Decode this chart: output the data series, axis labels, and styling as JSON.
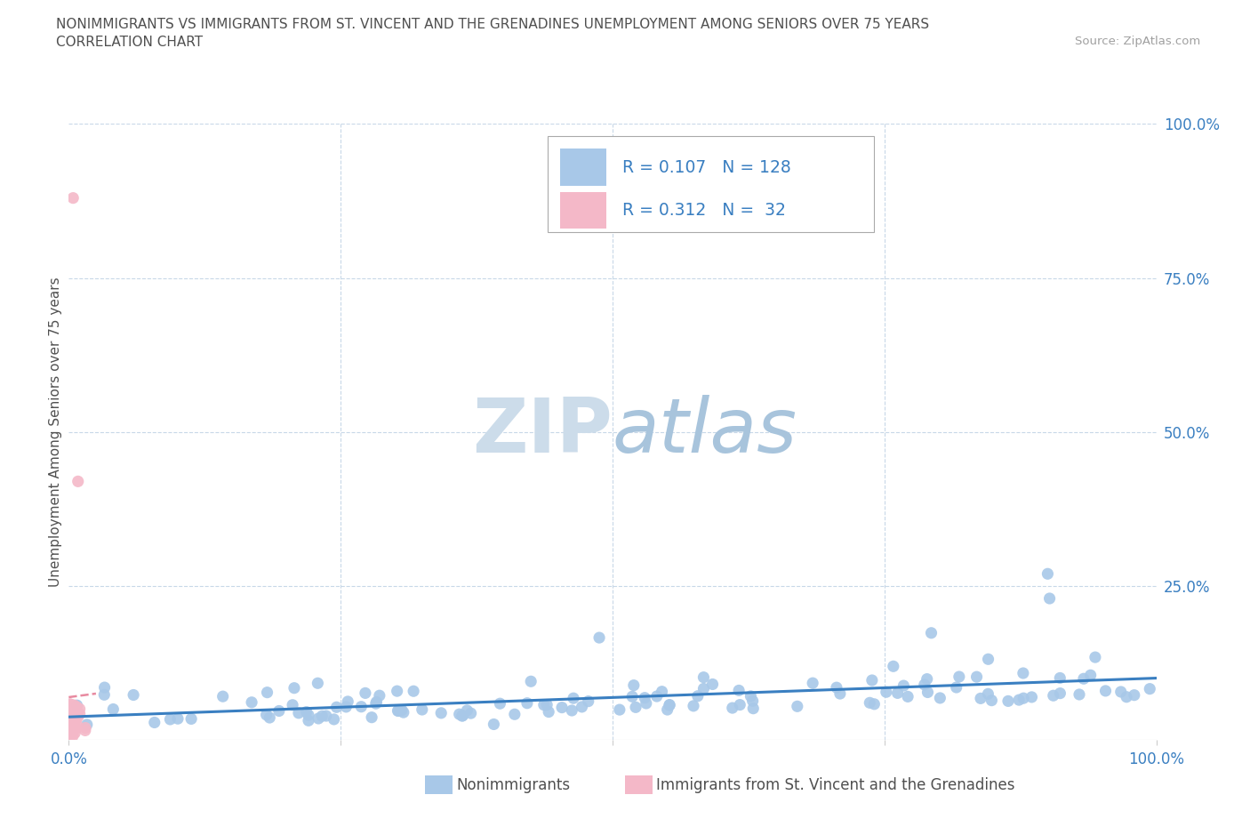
{
  "title_line1": "NONIMMIGRANTS VS IMMIGRANTS FROM ST. VINCENT AND THE GRENADINES UNEMPLOYMENT AMONG SENIORS OVER 75 YEARS",
  "title_line2": "CORRELATION CHART",
  "source_text": "Source: ZipAtlas.com",
  "ylabel": "Unemployment Among Seniors over 75 years",
  "xlim": [
    0,
    1.0
  ],
  "ylim": [
    0,
    1.0
  ],
  "ytick_vals": [
    0.0,
    0.25,
    0.5,
    0.75,
    1.0
  ],
  "ytick_labels": [
    "",
    "25.0%",
    "50.0%",
    "75.0%",
    "100.0%"
  ],
  "xtick_vals": [
    0.0,
    0.25,
    0.5,
    0.75,
    1.0
  ],
  "xtick_labels": [
    "0.0%",
    "",
    "",
    "",
    "100.0%"
  ],
  "nonimm_R": 0.107,
  "nonimm_N": 128,
  "imm_R": 0.312,
  "imm_N": 32,
  "nonimm_color": "#a8c8e8",
  "imm_color": "#f4b8c8",
  "nonimm_line_color": "#3a7fc1",
  "imm_line_color": "#e88aa0",
  "legend_color": "#3a7fc1",
  "watermark_color": "#dce8f0",
  "background_color": "#ffffff",
  "grid_color": "#c8d8e8",
  "title_color": "#505050",
  "ylabel_color": "#505050",
  "tick_color": "#3a7fc1",
  "source_color": "#a0a0a0",
  "bottom_legend_color": "#505050"
}
